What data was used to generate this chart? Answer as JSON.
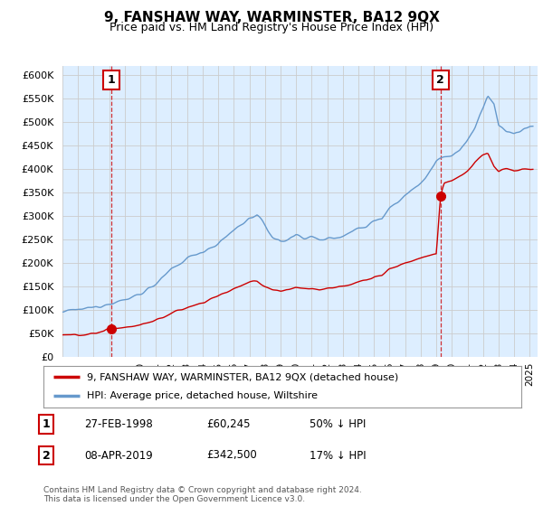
{
  "title": "9, FANSHAW WAY, WARMINSTER, BA12 9QX",
  "subtitle": "Price paid vs. HM Land Registry's House Price Index (HPI)",
  "ylabel_ticks": [
    "£0",
    "£50K",
    "£100K",
    "£150K",
    "£200K",
    "£250K",
    "£300K",
    "£350K",
    "£400K",
    "£450K",
    "£500K",
    "£550K",
    "£600K"
  ],
  "ytick_values": [
    0,
    50000,
    100000,
    150000,
    200000,
    250000,
    300000,
    350000,
    400000,
    450000,
    500000,
    550000,
    600000
  ],
  "ylim": [
    0,
    620000
  ],
  "xlim_start": 1995.0,
  "xlim_end": 2025.5,
  "sale1_x": 1998.15,
  "sale1_y": 60245,
  "sale1_label": "1",
  "sale2_x": 2019.27,
  "sale2_y": 342500,
  "sale2_label": "2",
  "hpi_color": "#6699cc",
  "price_color": "#cc0000",
  "chart_bg_color": "#ddeeff",
  "legend_line1": "9, FANSHAW WAY, WARMINSTER, BA12 9QX (detached house)",
  "legend_line2": "HPI: Average price, detached house, Wiltshire",
  "annotation1_date": "27-FEB-1998",
  "annotation1_price": "£60,245",
  "annotation1_hpi": "50% ↓ HPI",
  "annotation2_date": "08-APR-2019",
  "annotation2_price": "£342,500",
  "annotation2_hpi": "17% ↓ HPI",
  "footer": "Contains HM Land Registry data © Crown copyright and database right 2024.\nThis data is licensed under the Open Government Licence v3.0.",
  "background_color": "#ffffff",
  "grid_color": "#cccccc"
}
